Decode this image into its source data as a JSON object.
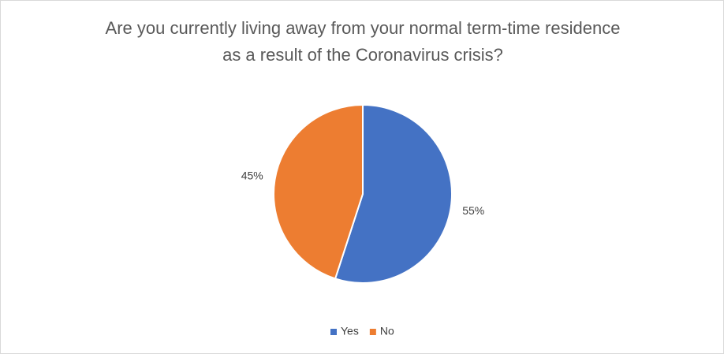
{
  "chart_data": {
    "type": "pie",
    "title": "Are you currently living away from your normal term-time residence as a result of the Coronavirus crisis?",
    "categories": [
      "Yes",
      "No"
    ],
    "values": [
      55,
      45
    ],
    "value_labels": [
      "55%",
      "45%"
    ],
    "colors": [
      "#4472c4",
      "#ed7d31"
    ],
    "legend": "bottom"
  }
}
